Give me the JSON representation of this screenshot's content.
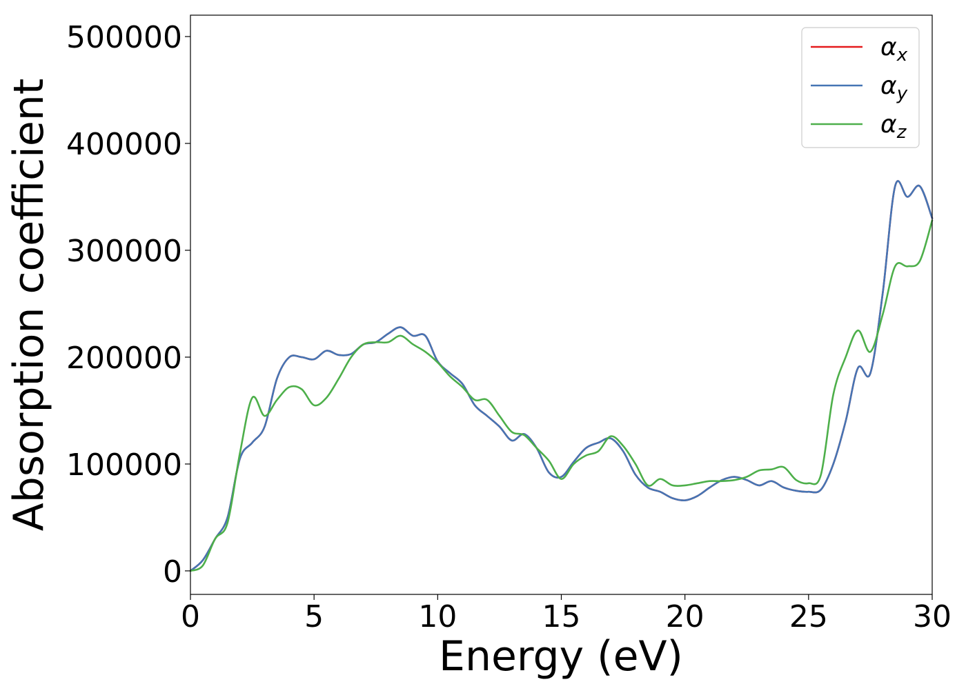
{
  "chart_data": {
    "type": "line",
    "title": "",
    "xlabel": "Energy (eV)",
    "ylabel": "Absorption coefficient",
    "xlim": [
      0,
      30
    ],
    "ylim": [
      -22000,
      520000
    ],
    "xticks": [
      0,
      5,
      10,
      15,
      20,
      25,
      30
    ],
    "xtick_labels": [
      "0",
      "5",
      "10",
      "15",
      "20",
      "25",
      "30"
    ],
    "yticks": [
      0,
      100000,
      200000,
      300000,
      400000,
      500000
    ],
    "ytick_labels": [
      "0",
      "100000",
      "200000",
      "300000",
      "400000",
      "500000"
    ],
    "grid": false,
    "legend_position": "top-right",
    "series": [
      {
        "name": "αx",
        "name_base": "α",
        "name_sub": "x",
        "color": "#e41a1c",
        "x": [
          0,
          0.5,
          1,
          1.5,
          2,
          2.5,
          3,
          3.5,
          4,
          4.5,
          5,
          5.5,
          6,
          6.5,
          7,
          7.5,
          8,
          8.5,
          9,
          9.5,
          10,
          10.5,
          11,
          11.5,
          12,
          12.5,
          13,
          13.5,
          14,
          14.5,
          15,
          15.5,
          16,
          16.5,
          17,
          17.5,
          18,
          18.5,
          19,
          19.5,
          20,
          20.5,
          21,
          21.5,
          22,
          22.5,
          23,
          23.5,
          24,
          24.5,
          25,
          25.5,
          26,
          26.5,
          27,
          27.5,
          28,
          28.5,
          29,
          29.5,
          30
        ],
        "y": [
          0,
          10000,
          30000,
          50000,
          105000,
          120000,
          135000,
          180000,
          200000,
          200000,
          198000,
          206000,
          202000,
          203000,
          212000,
          214000,
          222000,
          228000,
          220000,
          220000,
          196000,
          185000,
          175000,
          155000,
          145000,
          135000,
          122000,
          128000,
          115000,
          92000,
          88000,
          102000,
          115000,
          120000,
          124000,
          112000,
          90000,
          78000,
          74000,
          68000,
          66000,
          70000,
          78000,
          85000,
          88000,
          85000,
          80000,
          84000,
          78000,
          75000,
          74000,
          76000,
          100000,
          140000,
          190000,
          185000,
          260000,
          360000,
          350000,
          360000,
          330000
        ]
      },
      {
        "name": "αy",
        "name_base": "α",
        "name_sub": "y",
        "color": "#4575b4",
        "x": [
          0,
          0.5,
          1,
          1.5,
          2,
          2.5,
          3,
          3.5,
          4,
          4.5,
          5,
          5.5,
          6,
          6.5,
          7,
          7.5,
          8,
          8.5,
          9,
          9.5,
          10,
          10.5,
          11,
          11.5,
          12,
          12.5,
          13,
          13.5,
          14,
          14.5,
          15,
          15.5,
          16,
          16.5,
          17,
          17.5,
          18,
          18.5,
          19,
          19.5,
          20,
          20.5,
          21,
          21.5,
          22,
          22.5,
          23,
          23.5,
          24,
          24.5,
          25,
          25.5,
          26,
          26.5,
          27,
          27.5,
          28,
          28.5,
          29,
          29.5,
          30
        ],
        "y": [
          0,
          10000,
          30000,
          50000,
          105000,
          120000,
          135000,
          180000,
          200000,
          200000,
          198000,
          206000,
          202000,
          203000,
          212000,
          214000,
          222000,
          228000,
          220000,
          220000,
          196000,
          185000,
          175000,
          155000,
          145000,
          135000,
          122000,
          128000,
          115000,
          92000,
          88000,
          102000,
          115000,
          120000,
          124000,
          112000,
          90000,
          78000,
          74000,
          68000,
          66000,
          70000,
          78000,
          85000,
          88000,
          85000,
          80000,
          84000,
          78000,
          75000,
          74000,
          76000,
          100000,
          140000,
          190000,
          185000,
          260000,
          360000,
          350000,
          360000,
          330000
        ]
      },
      {
        "name": "αz",
        "name_base": "α",
        "name_sub": "z",
        "color": "#4daf4a",
        "x": [
          0,
          0.5,
          1,
          1.5,
          2,
          2.5,
          3,
          3.5,
          4,
          4.5,
          5,
          5.5,
          6,
          6.5,
          7,
          7.5,
          8,
          8.5,
          9,
          9.5,
          10,
          10.5,
          11,
          11.5,
          12,
          12.5,
          13,
          13.5,
          14,
          14.5,
          15,
          15.5,
          16,
          16.5,
          17,
          17.5,
          18,
          18.5,
          19,
          19.5,
          20,
          20.5,
          21,
          21.5,
          22,
          22.5,
          23,
          23.5,
          24,
          24.5,
          25,
          25.5,
          26,
          26.5,
          27,
          27.5,
          28,
          28.5,
          29,
          29.5,
          30
        ],
        "y": [
          0,
          5000,
          30000,
          45000,
          110000,
          162000,
          145000,
          160000,
          172000,
          170000,
          155000,
          162000,
          180000,
          200000,
          212000,
          214000,
          214000,
          220000,
          212000,
          205000,
          195000,
          182000,
          172000,
          160000,
          160000,
          145000,
          130000,
          127000,
          115000,
          103000,
          86000,
          100000,
          108000,
          112000,
          126000,
          117000,
          100000,
          80000,
          86000,
          80000,
          80000,
          82000,
          84000,
          84000,
          85000,
          88000,
          94000,
          95000,
          97000,
          85000,
          82000,
          90000,
          165000,
          200000,
          225000,
          205000,
          240000,
          285000,
          285000,
          290000,
          328000
        ]
      }
    ]
  }
}
